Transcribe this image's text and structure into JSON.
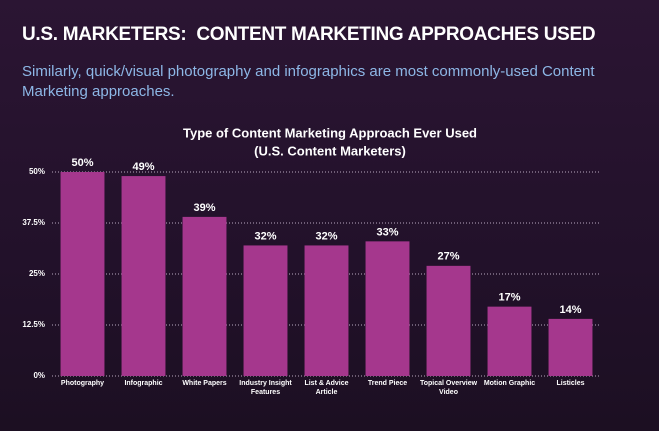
{
  "header": {
    "title": "U.S. MARKETERS:  CONTENT MARKETING APPROACHES USED",
    "subtitle": "Similarly, quick/visual photography and infographics are most commonly-used Content Marketing approaches."
  },
  "chart_data": {
    "type": "bar",
    "title": "Type of Content Marketing Approach Ever Used",
    "subtitle": "(U.S. Content Marketers)",
    "categories": [
      "Photography",
      "Infographic",
      "White Papers",
      "Industry Insight Features",
      "List & Advice Article",
      "Trend Piece",
      "Topical Overview Video",
      "Motion Graphic",
      "Listicles"
    ],
    "values": [
      50,
      49,
      39,
      32,
      32,
      33,
      27,
      17,
      14
    ],
    "value_labels": [
      "50%",
      "49%",
      "39%",
      "32%",
      "32%",
      "33%",
      "27%",
      "17%",
      "14%"
    ],
    "color": "#a5378d",
    "ylim": [
      0,
      50
    ],
    "yticks": [
      {
        "value": 0,
        "label": "0%"
      },
      {
        "value": 12.5,
        "label": "12.5%"
      },
      {
        "value": 25,
        "label": "25%"
      },
      {
        "value": 37.5,
        "label": "37.5%"
      },
      {
        "value": 50,
        "label": "50%"
      }
    ],
    "grid": true
  }
}
